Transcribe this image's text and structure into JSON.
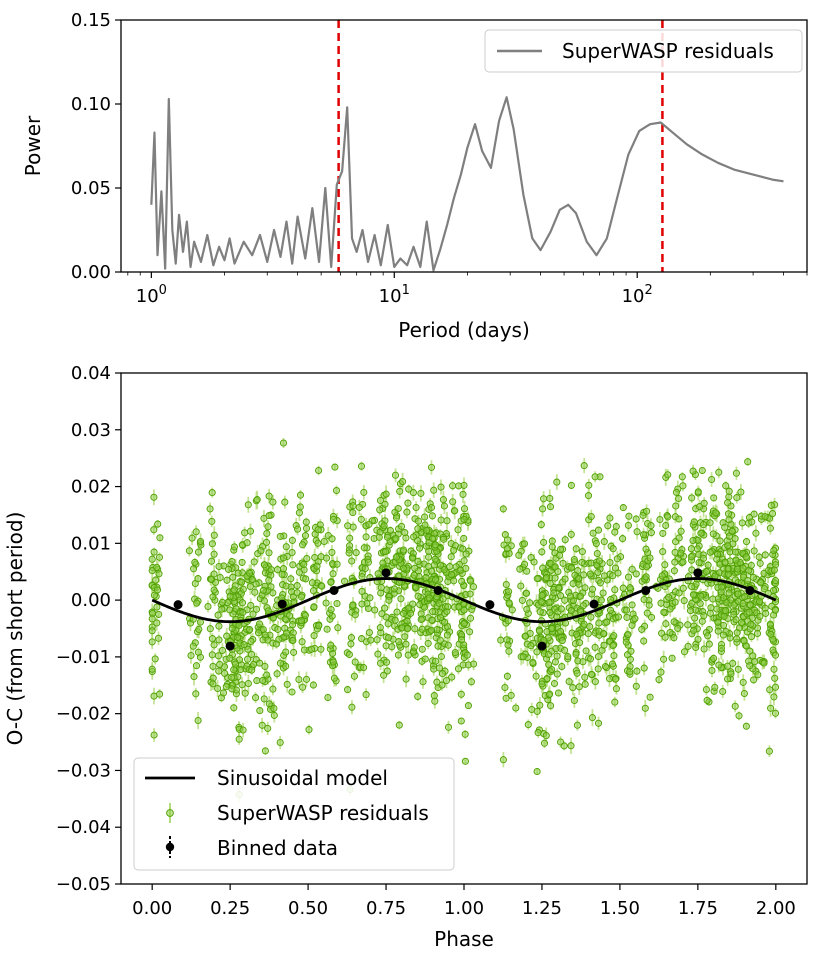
{
  "chart_data": [
    {
      "type": "line",
      "title": "",
      "xlabel": "Period (days)",
      "ylabel": "Power",
      "xscale": "log",
      "xlim": [
        0.75,
        500
      ],
      "ylim": [
        0,
        0.15
      ],
      "xticks": [
        {
          "value": 1,
          "base": "10",
          "exp": "0"
        },
        {
          "value": 10,
          "base": "10",
          "exp": "1"
        },
        {
          "value": 100,
          "base": "10",
          "exp": "2"
        }
      ],
      "yticks": [
        {
          "value": 0.0,
          "label": "0.00"
        },
        {
          "value": 0.05,
          "label": "0.05"
        },
        {
          "value": 0.1,
          "label": "0.10"
        },
        {
          "value": 0.15,
          "label": "0.15"
        }
      ],
      "reference_lines": [
        {
          "axis": "x",
          "value": 5.9,
          "color": "#e00000",
          "style": "dashed"
        },
        {
          "axis": "x",
          "value": 127,
          "color": "#e00000",
          "style": "dashed"
        }
      ],
      "series": [
        {
          "name": "SuperWASP residuals",
          "color": "#7f7f7f",
          "x": [
            1.0,
            1.03,
            1.06,
            1.1,
            1.14,
            1.18,
            1.22,
            1.26,
            1.3,
            1.35,
            1.4,
            1.45,
            1.5,
            1.6,
            1.7,
            1.8,
            1.9,
            2.0,
            2.1,
            2.2,
            2.4,
            2.6,
            2.8,
            3.0,
            3.2,
            3.4,
            3.6,
            3.8,
            4.0,
            4.3,
            4.6,
            4.9,
            5.2,
            5.5,
            5.8,
            6.1,
            6.4,
            6.7,
            7.0,
            7.4,
            7.8,
            8.3,
            8.8,
            9.4,
            10.0,
            10.6,
            11.3,
            12.0,
            12.8,
            13.6,
            14.5,
            15.5,
            16.5,
            17.6,
            18.8,
            20.0,
            21.5,
            23.0,
            25.0,
            27.0,
            29.0,
            31.0,
            34.0,
            37.0,
            40.0,
            44.0,
            48.0,
            52.0,
            56.0,
            62.0,
            68.0,
            75.0,
            83.0,
            92.0,
            102.0,
            113.0,
            125.0,
            140.0,
            160.0,
            185.0,
            215.0,
            250.0,
            300.0,
            360.0,
            400.0
          ],
          "values": [
            0.04,
            0.083,
            0.01,
            0.048,
            0.002,
            0.103,
            0.025,
            0.005,
            0.034,
            0.012,
            0.03,
            0.003,
            0.018,
            0.006,
            0.022,
            0.004,
            0.015,
            0.007,
            0.02,
            0.005,
            0.018,
            0.01,
            0.022,
            0.006,
            0.025,
            0.009,
            0.03,
            0.005,
            0.033,
            0.008,
            0.038,
            0.006,
            0.05,
            0.003,
            0.052,
            0.06,
            0.098,
            0.02,
            0.012,
            0.025,
            0.006,
            0.022,
            0.004,
            0.028,
            0.003,
            0.008,
            0.004,
            0.015,
            0.003,
            0.03,
            0.001,
            0.014,
            0.028,
            0.044,
            0.058,
            0.074,
            0.088,
            0.072,
            0.062,
            0.09,
            0.104,
            0.085,
            0.046,
            0.02,
            0.013,
            0.024,
            0.037,
            0.04,
            0.035,
            0.018,
            0.01,
            0.02,
            0.045,
            0.07,
            0.084,
            0.088,
            0.089,
            0.083,
            0.076,
            0.07,
            0.065,
            0.061,
            0.058,
            0.055,
            0.054
          ]
        }
      ],
      "legend": {
        "position": "top-right",
        "entries": [
          "SuperWASP residuals"
        ]
      }
    },
    {
      "type": "scatter",
      "title": "",
      "xlabel": "Phase",
      "ylabel": "O-C (from short period)",
      "xlim": [
        -0.1,
        2.1
      ],
      "ylim": [
        -0.05,
        0.04
      ],
      "xticks": [
        {
          "value": 0.0,
          "label": "0.00"
        },
        {
          "value": 0.25,
          "label": "0.25"
        },
        {
          "value": 0.5,
          "label": "0.50"
        },
        {
          "value": 0.75,
          "label": "0.75"
        },
        {
          "value": 1.0,
          "label": "1.00"
        },
        {
          "value": 1.25,
          "label": "1.25"
        },
        {
          "value": 1.5,
          "label": "1.50"
        },
        {
          "value": 1.75,
          "label": "1.75"
        },
        {
          "value": 2.0,
          "label": "2.00"
        }
      ],
      "yticks": [
        {
          "value": 0.04,
          "label": "0.04"
        },
        {
          "value": 0.03,
          "label": "0.03"
        },
        {
          "value": 0.02,
          "label": "0.02"
        },
        {
          "value": 0.01,
          "label": "0.01"
        },
        {
          "value": 0.0,
          "label": "0.00"
        },
        {
          "value": -0.01,
          "label": "−0.01"
        },
        {
          "value": -0.02,
          "label": "−0.02"
        },
        {
          "value": -0.03,
          "label": "−0.03"
        },
        {
          "value": -0.04,
          "label": "−0.04"
        },
        {
          "value": -0.05,
          "label": "−0.05"
        }
      ],
      "series": [
        {
          "name": "Sinusoidal model",
          "kind": "line",
          "color": "#000000",
          "function": "amplitude * -sin(2*pi*phase)",
          "amplitude": 0.0038,
          "x_range": [
            0.0,
            2.0
          ]
        },
        {
          "name": "SuperWASP residuals",
          "kind": "scatter",
          "color": "#4fa000",
          "errorbar_color": "#b5dc7a",
          "count_points": 2000,
          "scatter_std": 0.009,
          "note": "phase-folded data points, two cycles, clustered in observing groups"
        },
        {
          "name": "Binned data",
          "kind": "errorbar",
          "color": "#000000",
          "x": [
            0.083,
            0.25,
            0.417,
            0.583,
            0.75,
            0.917,
            1.083,
            1.25,
            1.417,
            1.583,
            1.75,
            1.917
          ],
          "values": [
            -0.0008,
            -0.0081,
            -0.0007,
            0.0017,
            0.0048,
            0.0017,
            -0.0008,
            -0.0081,
            -0.0007,
            0.0017,
            0.0048,
            0.0017
          ]
        }
      ],
      "legend": {
        "position": "bottom-left",
        "entries": [
          "Sinusoidal model",
          "SuperWASP residuals",
          "Binned data"
        ]
      }
    }
  ]
}
